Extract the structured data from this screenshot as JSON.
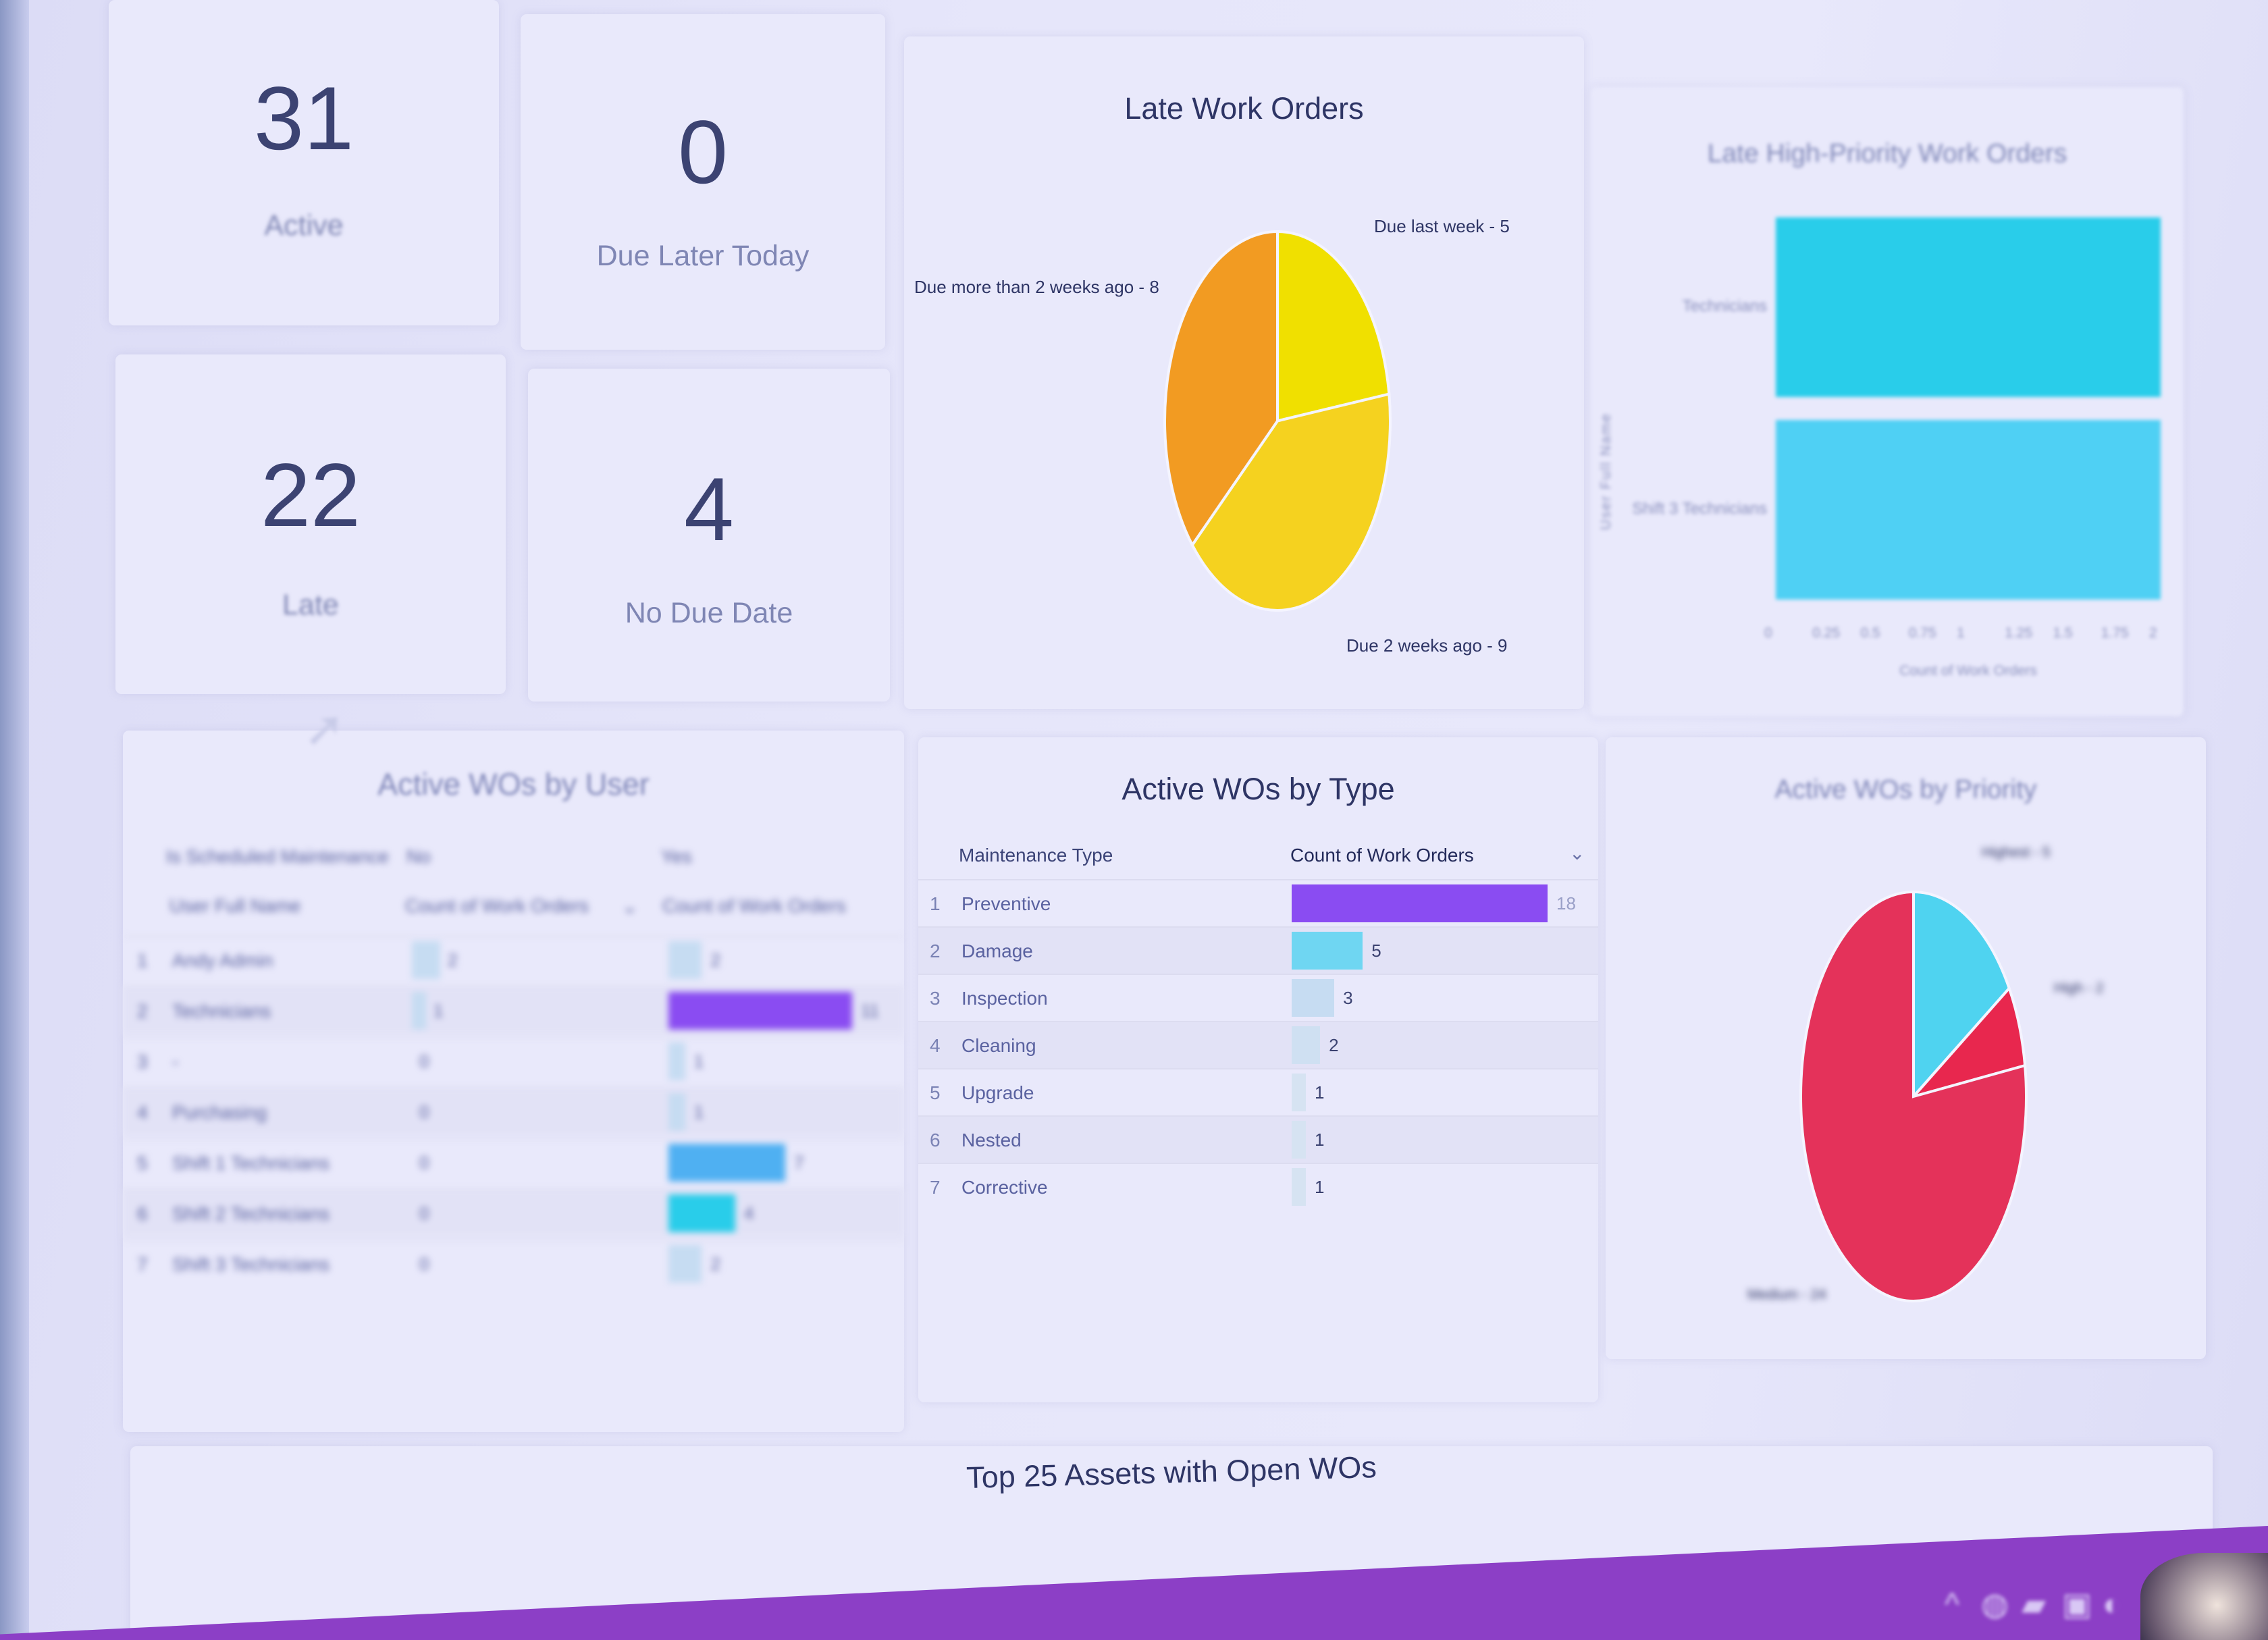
{
  "kpis": [
    {
      "value": "31",
      "label": "Active"
    },
    {
      "value": "0",
      "label": "Due Later Today"
    },
    {
      "value": "22",
      "label": "Late"
    },
    {
      "value": "4",
      "label": "No Due Date"
    }
  ],
  "late_work_orders": {
    "title": "Late Work Orders"
  },
  "late_high_priority": {
    "title": "Late High-Priority Work Orders"
  },
  "active_by_user": {
    "title": "Active WOs by User",
    "pivot_header": "Is Scheduled Maintenance",
    "pivot_no": "No",
    "pivot_yes": "Yes",
    "col_name": "User Full Name",
    "col_count": "Count of Work Orders",
    "sort_icon": "chevron-down-icon"
  },
  "active_by_type": {
    "title": "Active WOs by Type",
    "col_type": "Maintenance Type",
    "col_count": "Count of Work Orders",
    "sort_icon": "chevron-down-icon"
  },
  "active_by_priority": {
    "title": "Active WOs by Priority"
  },
  "top_assets": {
    "title": "Top 25 Assets with Open WOs"
  },
  "taskbar": {
    "icons": [
      "chevron-up-icon",
      "network-icon",
      "battery-icon",
      "display-icon",
      "volume-icon"
    ]
  },
  "colors": {
    "purple": "#8a4cf2",
    "cyan": "#29cdea",
    "light_blue": "#4fc9f2",
    "pale": "#c6dcf2",
    "orange": "#f29b22",
    "yellow": "#f0e000",
    "gold": "#f5d21f",
    "crimson": "#e4325a",
    "taskbar": "#8c3fc6"
  },
  "chart_data": [
    {
      "type": "pie",
      "title": "Late Work Orders",
      "slices": [
        {
          "label": "Due last week",
          "value": 5,
          "color": "#f0e000"
        },
        {
          "label": "Due 2 weeks ago",
          "value": 9,
          "color": "#f5d21f"
        },
        {
          "label": "Due more than 2 weeks ago",
          "value": 8,
          "color": "#f29b22"
        }
      ]
    },
    {
      "type": "bar",
      "orientation": "horizontal",
      "title": "Late High-Priority Work Orders",
      "categories": [
        "Technicians",
        "Shift 3 Technicians"
      ],
      "values": [
        2,
        2
      ],
      "xlabel": "Count of Work Orders",
      "ylabel": "User Full Name",
      "xlim": [
        0,
        2
      ],
      "xticks": [
        "0",
        "0.25",
        "0.5",
        "0.75",
        "1",
        "1.25",
        "1.5",
        "1.75",
        "2"
      ],
      "color": "#29cdea"
    },
    {
      "type": "table",
      "title": "Active WOs by User",
      "rows": [
        {
          "idx": "1",
          "name": "Andy Admin",
          "no": 2,
          "yes": 2,
          "color": "#c6dcf2"
        },
        {
          "idx": "2",
          "name": "Technicians",
          "no": 1,
          "yes": 11,
          "color": "#8a4cf2"
        },
        {
          "idx": "3",
          "name": "-",
          "no": 0,
          "yes": 1,
          "color": "#c6dcf2"
        },
        {
          "idx": "4",
          "name": "Purchasing",
          "no": 0,
          "yes": 1,
          "color": "#c6dcf2"
        },
        {
          "idx": "5",
          "name": "Shift 1 Technicians",
          "no": 0,
          "yes": 7,
          "color": "#4fb0f2"
        },
        {
          "idx": "6",
          "name": "Shift 2 Technicians",
          "no": 0,
          "yes": 4,
          "color": "#29cdea"
        },
        {
          "idx": "7",
          "name": "Shift 3 Technicians",
          "no": 0,
          "yes": 2,
          "color": "#c6dcf2"
        }
      ]
    },
    {
      "type": "table",
      "title": "Active WOs by Type",
      "rows": [
        {
          "idx": "1",
          "name": "Preventive",
          "value": 18,
          "color": "#8a4cf2"
        },
        {
          "idx": "2",
          "name": "Damage",
          "value": 5,
          "color": "#6fd6f2"
        },
        {
          "idx": "3",
          "name": "Inspection",
          "value": 3,
          "color": "#c6dcf2"
        },
        {
          "idx": "4",
          "name": "Cleaning",
          "value": 2,
          "color": "#cfe0f2"
        },
        {
          "idx": "5",
          "name": "Upgrade",
          "value": 1,
          "color": "#d6e3f2"
        },
        {
          "idx": "6",
          "name": "Nested",
          "value": 1,
          "color": "#d6e3f2"
        },
        {
          "idx": "7",
          "name": "Corrective",
          "value": 1,
          "color": "#d6e3f2"
        }
      ]
    },
    {
      "type": "pie",
      "title": "Active WOs by Priority",
      "slices": [
        {
          "label": "Highest",
          "value": 5,
          "color": "#4fd3f0"
        },
        {
          "label": "High",
          "value": 2,
          "color": "#e8274e"
        },
        {
          "label": "Medium",
          "value": 24,
          "color": "#e4325a"
        }
      ]
    }
  ]
}
